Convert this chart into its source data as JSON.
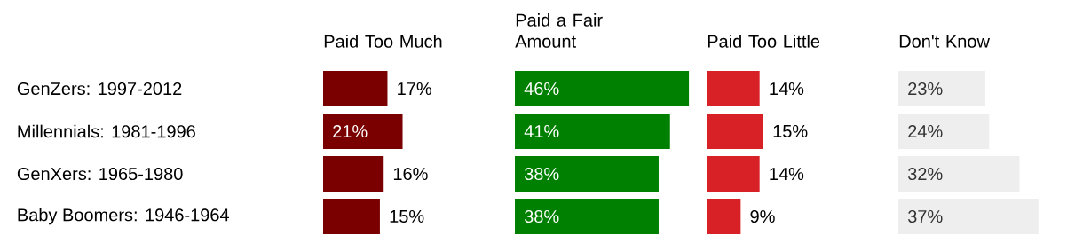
{
  "chart_data": [
    {
      "type": "bar",
      "orientation": "horizontal",
      "title": "Paid Too Much",
      "categories": [
        "GenZers: 1997-2012",
        "Millennials: 1981-1996",
        "GenXers: 1965-1980",
        "Baby Boomers: 1946-1964"
      ],
      "values": [
        17,
        21,
        16,
        15
      ],
      "value_labels": [
        "17%",
        "21%",
        "16%",
        "15%"
      ],
      "color": "#7a0000",
      "tick_labels": "y"
    },
    {
      "type": "bar",
      "orientation": "horizontal",
      "title": "Paid a Fair Amount",
      "values": [
        46,
        41,
        38,
        38
      ],
      "value_labels": [
        "46%",
        "41%",
        "38%",
        "38%"
      ],
      "color": "#008000",
      "tick_labels": false
    },
    {
      "type": "bar",
      "orientation": "horizontal",
      "title": "Paid Too Little",
      "values": [
        14,
        15,
        14,
        9
      ],
      "value_labels": [
        "14%",
        "15%",
        "14%",
        "9%"
      ],
      "color": "#d82027",
      "tick_labels": false
    },
    {
      "type": "bar",
      "orientation": "horizontal",
      "title": "Don't Know",
      "values": [
        23,
        24,
        32,
        37
      ],
      "value_labels": [
        "23%",
        "24%",
        "32%",
        "37%"
      ],
      "color": "#eeeeee",
      "tick_labels": false
    }
  ]
}
